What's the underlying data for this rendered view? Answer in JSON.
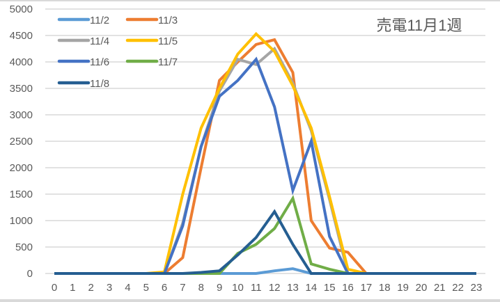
{
  "chart_data": {
    "type": "line",
    "title": "売電11月1週",
    "xlabel": "",
    "ylabel": "",
    "x": [
      0,
      1,
      2,
      3,
      4,
      5,
      6,
      7,
      8,
      9,
      10,
      11,
      12,
      13,
      14,
      15,
      16,
      17,
      18,
      19,
      20,
      21,
      22,
      23
    ],
    "ylim": [
      0,
      5000
    ],
    "yticks": [
      0,
      500,
      1000,
      1500,
      2000,
      2500,
      3000,
      3500,
      4000,
      4500,
      5000
    ],
    "grid": true,
    "legend_position": "upper-left-inside",
    "series": [
      {
        "name": "11/2",
        "color": "#5b9bd5",
        "values": [
          0,
          0,
          0,
          0,
          0,
          0,
          0,
          0,
          0,
          0,
          0,
          0,
          50,
          90,
          0,
          0,
          0,
          0,
          0,
          0,
          0,
          0,
          0,
          0
        ]
      },
      {
        "name": "11/3",
        "color": "#ed7d31",
        "values": [
          0,
          0,
          0,
          0,
          0,
          0,
          0,
          300,
          2000,
          3650,
          4000,
          4330,
          4420,
          3800,
          1000,
          480,
          400,
          0,
          0,
          0,
          0,
          0,
          0,
          0
        ]
      },
      {
        "name": "11/4",
        "color": "#a5a5a5",
        "values": [
          0,
          0,
          0,
          0,
          0,
          0,
          0,
          950,
          2400,
          3450,
          4050,
          3950,
          4250,
          3600,
          2700,
          1400,
          0,
          0,
          0,
          0,
          0,
          0,
          0,
          0
        ]
      },
      {
        "name": "11/5",
        "color": "#ffc000",
        "values": [
          0,
          0,
          0,
          0,
          0,
          0,
          30,
          1500,
          2750,
          3500,
          4150,
          4530,
          4200,
          3550,
          2750,
          1450,
          80,
          0,
          0,
          0,
          0,
          0,
          0,
          0
        ]
      },
      {
        "name": "11/6",
        "color": "#4472c4",
        "values": [
          0,
          0,
          0,
          0,
          0,
          0,
          0,
          900,
          2400,
          3350,
          3650,
          4050,
          3150,
          1570,
          2500,
          700,
          0,
          0,
          0,
          0,
          0,
          0,
          0,
          0
        ]
      },
      {
        "name": "11/7",
        "color": "#70ad47",
        "values": [
          0,
          0,
          0,
          0,
          0,
          0,
          0,
          0,
          0,
          0,
          380,
          550,
          850,
          1420,
          180,
          80,
          0,
          0,
          0,
          0,
          0,
          0,
          0,
          0
        ]
      },
      {
        "name": "11/8",
        "color": "#255e91",
        "values": [
          0,
          0,
          0,
          0,
          0,
          0,
          0,
          0,
          20,
          50,
          350,
          680,
          1170,
          550,
          0,
          0,
          0,
          0,
          0,
          0,
          0,
          0,
          0,
          0
        ]
      }
    ]
  }
}
